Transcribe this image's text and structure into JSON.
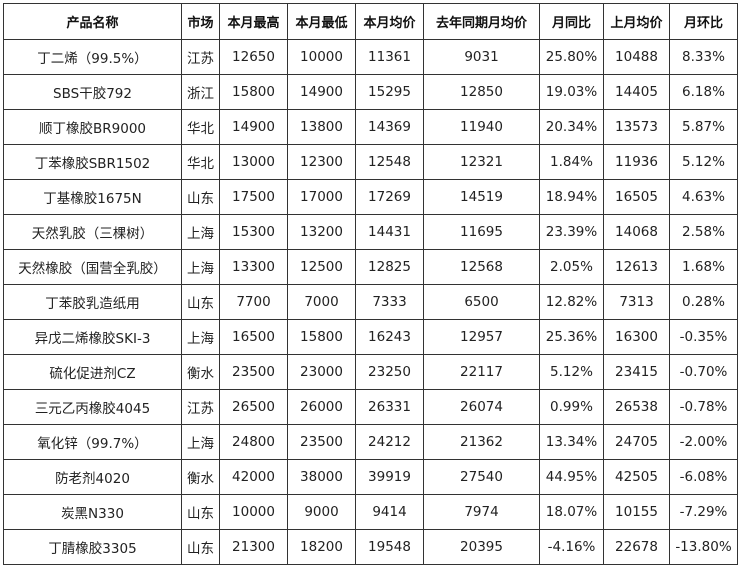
{
  "colors": {
    "positive": "#e02020",
    "negative": "#1a8a1a",
    "border": "#333333"
  },
  "table": {
    "headers": [
      "产品名称",
      "市场",
      "本月最高",
      "本月最低",
      "本月均价",
      "去年同期月均价",
      "月同比",
      "上月均价",
      "月环比"
    ],
    "rows": [
      {
        "name": "丁二烯（99.5%）",
        "market": "江苏",
        "high": "12650",
        "low": "10000",
        "avg": "11361",
        "last_year_avg": "9031",
        "yoy": "25.80%",
        "last_month_avg": "10488",
        "mom": "8.33%"
      },
      {
        "name": "SBS干胶792",
        "market": "浙江",
        "high": "15800",
        "low": "14900",
        "avg": "15295",
        "last_year_avg": "12850",
        "yoy": "19.03%",
        "last_month_avg": "14405",
        "mom": "6.18%"
      },
      {
        "name": "顺丁橡胶BR9000",
        "market": "华北",
        "high": "14900",
        "low": "13800",
        "avg": "14369",
        "last_year_avg": "11940",
        "yoy": "20.34%",
        "last_month_avg": "13573",
        "mom": "5.87%"
      },
      {
        "name": "丁苯橡胶SBR1502",
        "market": "华北",
        "high": "13000",
        "low": "12300",
        "avg": "12548",
        "last_year_avg": "12321",
        "yoy": "1.84%",
        "last_month_avg": "11936",
        "mom": "5.12%"
      },
      {
        "name": "丁基橡胶1675N",
        "market": "山东",
        "high": "17500",
        "low": "17000",
        "avg": "17269",
        "last_year_avg": "14519",
        "yoy": "18.94%",
        "last_month_avg": "16505",
        "mom": "4.63%"
      },
      {
        "name": "天然乳胶（三棵树）",
        "market": "上海",
        "high": "15300",
        "low": "13200",
        "avg": "14431",
        "last_year_avg": "11695",
        "yoy": "23.39%",
        "last_month_avg": "14068",
        "mom": "2.58%"
      },
      {
        "name": "天然橡胶（国营全乳胶）",
        "market": "上海",
        "high": "13300",
        "low": "12500",
        "avg": "12825",
        "last_year_avg": "12568",
        "yoy": "2.05%",
        "last_month_avg": "12613",
        "mom": "1.68%"
      },
      {
        "name": "丁苯胶乳造纸用",
        "market": "山东",
        "high": "7700",
        "low": "7000",
        "avg": "7333",
        "last_year_avg": "6500",
        "yoy": "12.82%",
        "last_month_avg": "7313",
        "mom": "0.28%"
      },
      {
        "name": "异戊二烯橡胶SKI-3",
        "market": "上海",
        "high": "16500",
        "low": "15800",
        "avg": "16243",
        "last_year_avg": "12957",
        "yoy": "25.36%",
        "last_month_avg": "16300",
        "mom": "-0.35%"
      },
      {
        "name": "硫化促进剂CZ",
        "market": "衡水",
        "high": "23500",
        "low": "23000",
        "avg": "23250",
        "last_year_avg": "22117",
        "yoy": "5.12%",
        "last_month_avg": "23415",
        "mom": "-0.70%"
      },
      {
        "name": "三元乙丙橡胶4045",
        "market": "江苏",
        "high": "26500",
        "low": "26000",
        "avg": "26331",
        "last_year_avg": "26074",
        "yoy": "0.99%",
        "last_month_avg": "26538",
        "mom": "-0.78%"
      },
      {
        "name": "氧化锌（99.7%）",
        "market": "上海",
        "high": "24800",
        "low": "23500",
        "avg": "24212",
        "last_year_avg": "21362",
        "yoy": "13.34%",
        "last_month_avg": "24705",
        "mom": "-2.00%"
      },
      {
        "name": "防老剂4020",
        "market": "衡水",
        "high": "42000",
        "low": "38000",
        "avg": "39919",
        "last_year_avg": "27540",
        "yoy": "44.95%",
        "last_month_avg": "42505",
        "mom": "-6.08%"
      },
      {
        "name": "炭黑N330",
        "market": "山东",
        "high": "10000",
        "low": "9000",
        "avg": "9414",
        "last_year_avg": "7974",
        "yoy": "18.07%",
        "last_month_avg": "10155",
        "mom": "-7.29%"
      },
      {
        "name": "丁腈橡胶3305",
        "market": "山东",
        "high": "21300",
        "low": "18200",
        "avg": "19548",
        "last_year_avg": "20395",
        "yoy": "-4.16%",
        "last_month_avg": "22678",
        "mom": "-13.80%"
      }
    ]
  }
}
